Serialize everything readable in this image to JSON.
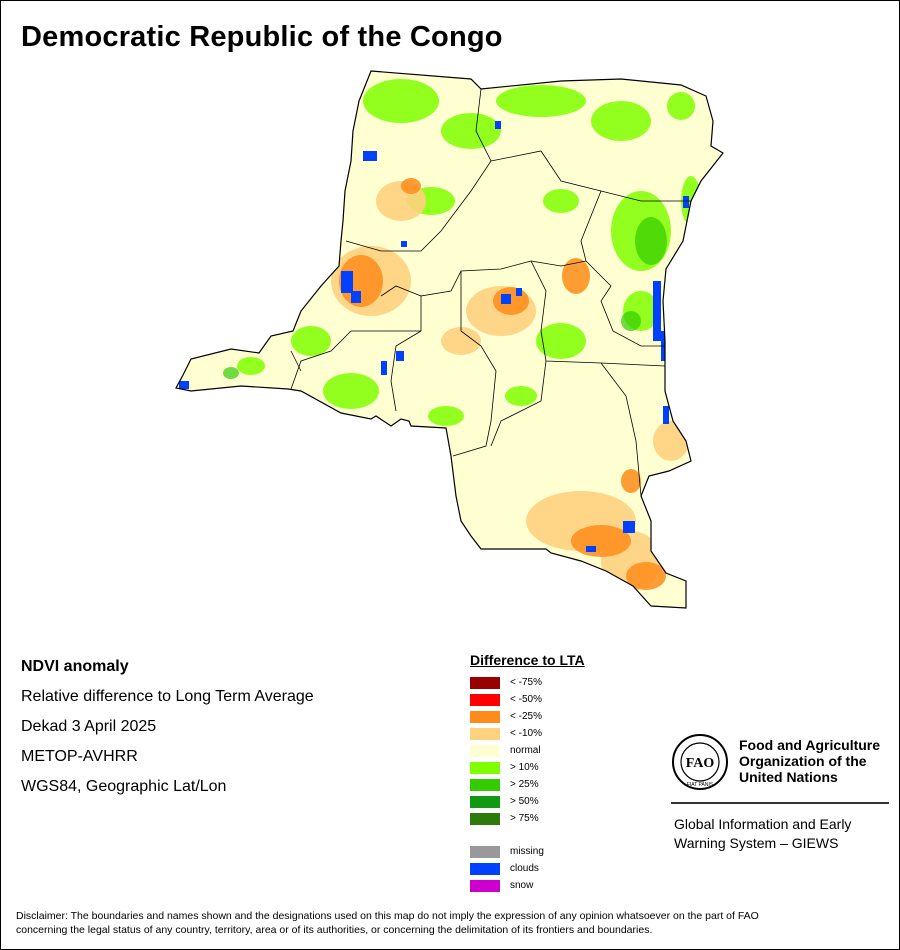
{
  "title": "Democratic Republic of the Congo",
  "info": {
    "heading": "NDVI anomaly",
    "line1": "Relative difference to Long Term Average",
    "line2": "Dekad 3 April 2025",
    "line3": "METOP-AVHRR",
    "line4": "WGS84, Geographic Lat/Lon"
  },
  "legend": {
    "title": "Difference to LTA",
    "items": [
      {
        "label": "< -75%",
        "color": "#990000"
      },
      {
        "label": "< -50%",
        "color": "#ff0000"
      },
      {
        "label": "< -25%",
        "color": "#ff8c1a"
      },
      {
        "label": "< -10%",
        "color": "#ffd27f"
      },
      {
        "label": "normal",
        "color": "#ffffd2"
      },
      {
        "label": "> 10%",
        "color": "#80ff00"
      },
      {
        "label": "> 25%",
        "color": "#33cc00"
      },
      {
        "label": "> 50%",
        "color": "#119911"
      },
      {
        "label": "> 75%",
        "color": "#2e7a0a"
      }
    ],
    "extra": [
      {
        "label": "missing",
        "color": "#999999"
      },
      {
        "label": "clouds",
        "color": "#0040ff"
      },
      {
        "label": "snow",
        "color": "#cc00cc"
      }
    ]
  },
  "org": {
    "name_line1": "Food and Agriculture",
    "name_line2": "Organization of the",
    "name_line3": "United Nations",
    "logo_text": "FAO",
    "logo_motto": "FIAT PANIS",
    "system_line1": "Global Information and Early",
    "system_line2": "Warning System – GIEWS"
  },
  "disclaimer_line1": "Disclaimer: The boundaries and names shown and the designations used on this map do not imply the expression of any opinion whatsoever on the part of FAO",
  "disclaimer_line2": "concerning the legal status of any country, territory, area or of its authorities, or concerning the delimitation of its frontiers and boundaries.",
  "map_colors": {
    "base": "#ffffd2",
    "green": "#80ff00",
    "orange": "#ff8c1a",
    "light_orange": "#ffd27f",
    "clouds": "#0040ff",
    "border": "#000000"
  }
}
